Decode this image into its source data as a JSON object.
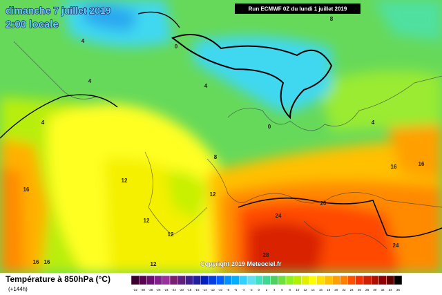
{
  "header": {
    "title": "dimanche 7 juillet 2019",
    "subtitle": "2:00 locale",
    "run": "Run ECMWF 0Z du lundi 1 juillet 2019"
  },
  "map": {
    "copyright": "Copyright 2019 Meteociel.fr",
    "contour_labels": [
      "8",
      "0",
      "4",
      "4",
      "4",
      "0",
      "4",
      "8",
      "12",
      "16",
      "16",
      "12",
      "20",
      "12",
      "24",
      "16",
      "12",
      "24",
      "28",
      "16",
      "16",
      "12",
      "4"
    ]
  },
  "legend": {
    "title": "Température à 850hPa (°C)",
    "lead_time": "(+144h)",
    "labels": [
      -32,
      -30,
      -28,
      -26,
      -24,
      -22,
      -20,
      -18,
      -16,
      -14,
      -12,
      -10,
      -8,
      -6,
      -4,
      -2,
      0,
      2,
      4,
      6,
      8,
      10,
      12,
      14,
      16,
      18,
      20,
      22,
      24,
      26,
      28,
      30,
      32,
      34,
      36
    ],
    "colors": [
      "#3a0030",
      "#5a0050",
      "#6a1070",
      "#80208a",
      "#9a30a0",
      "#7a2070",
      "#602080",
      "#402090",
      "#2020a0",
      "#0020c0",
      "#0040e0",
      "#0060ff",
      "#0090ff",
      "#00b0ff",
      "#30d0ff",
      "#60e0f0",
      "#40e0c0",
      "#40d890",
      "#50d060",
      "#70e040",
      "#90f020",
      "#b0f000",
      "#e0f000",
      "#ffff00",
      "#ffe000",
      "#ffc000",
      "#ffa000",
      "#ff8000",
      "#ff5000",
      "#f03000",
      "#d02000",
      "#b01000",
      "#900000",
      "#600000",
      "#000000"
    ]
  }
}
